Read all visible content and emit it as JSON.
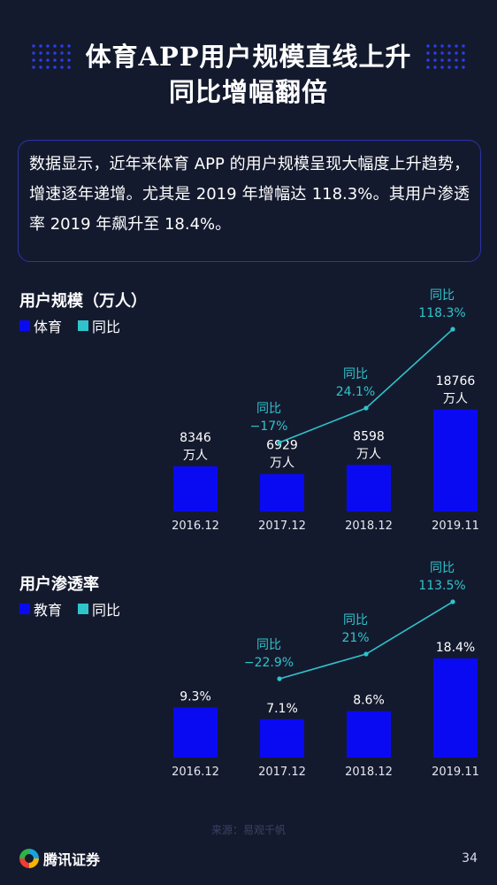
{
  "title": {
    "line1": "体育APP用户规模直线上升",
    "line2": "同比增幅翻倍"
  },
  "summary": "数据显示，近年来体育 APP 的用户规模呈现大幅度上升趋势，增速逐年递增。尤其是 2019 年增幅达 118.3%。其用户渗透率 2019 年飙升至 18.4%。",
  "colors": {
    "bar": "#0a0af2",
    "line": "#2fc4cc",
    "background": "#141a2e"
  },
  "chart_data": [
    {
      "type": "bar",
      "title": "用户规模（万人）",
      "legend": [
        "体育",
        "同比"
      ],
      "categories": [
        "2016.12",
        "2017.12",
        "2018.12",
        "2019.11"
      ],
      "series": [
        {
          "name": "体育",
          "values": [
            8346,
            6929,
            8598,
            18766
          ],
          "labels": [
            "8346\n万人",
            "6929\n万人",
            "8598\n万人",
            "18766\n万人"
          ]
        },
        {
          "name": "同比",
          "type": "line",
          "x": [
            "2017.12",
            "2018.12",
            "2019.11"
          ],
          "values": [
            -17,
            24.1,
            118.3
          ],
          "labels": [
            "−17%",
            "24.1%",
            "118.3%"
          ],
          "prefix": "同比"
        }
      ]
    },
    {
      "type": "bar",
      "title": "用户渗透率",
      "legend": [
        "教育",
        "同比"
      ],
      "categories": [
        "2016.12",
        "2017.12",
        "2018.12",
        "2019.11"
      ],
      "series": [
        {
          "name": "教育",
          "values": [
            9.3,
            7.1,
            8.6,
            18.4
          ],
          "labels": [
            "9.3%",
            "7.1%",
            "8.6%",
            "18.4%"
          ]
        },
        {
          "name": "同比",
          "type": "line",
          "x": [
            "2017.12",
            "2018.12",
            "2019.11"
          ],
          "values": [
            -22.9,
            21,
            113.5
          ],
          "labels": [
            "−22.9%",
            "21%",
            "113.5%"
          ],
          "prefix": "同比"
        }
      ]
    }
  ],
  "footer": {
    "source": "来源：易观千帆",
    "logo": "腾讯证券",
    "page": "34"
  }
}
